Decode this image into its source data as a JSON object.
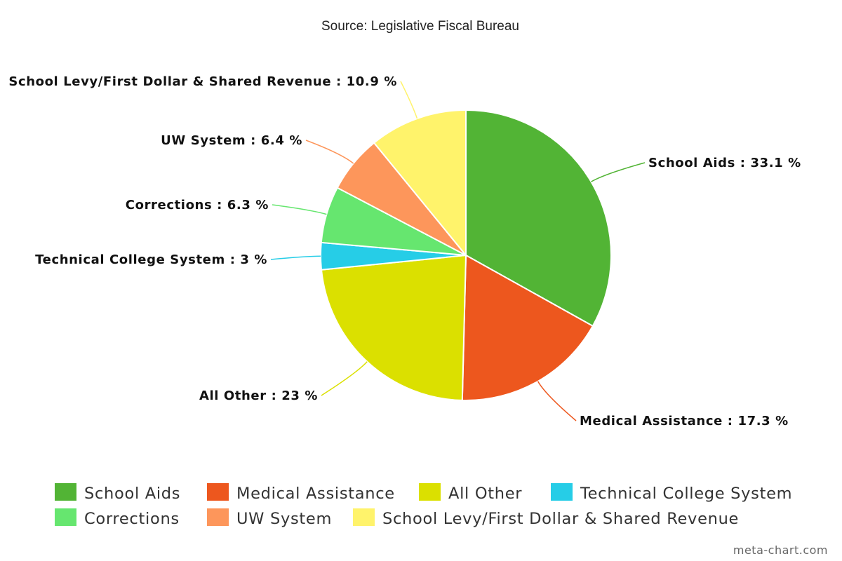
{
  "chart_data": {
    "type": "pie",
    "title": "",
    "subtitle": "Source: Legislative Fiscal Bureau",
    "legend_position": "bottom",
    "slices": [
      {
        "name": "School Aids",
        "value": 33.1,
        "label": "School Aids : 33.1 %",
        "color": "#52b435"
      },
      {
        "name": "Medical Assistance",
        "value": 17.3,
        "label": "Medical Assistance : 17.3 %",
        "color": "#ed571e"
      },
      {
        "name": "All Other",
        "value": 23,
        "label": "All Other : 23 %",
        "color": "#dbe000"
      },
      {
        "name": "Technical College System",
        "value": 3,
        "label": "Technical College System : 3 %",
        "color": "#26cde7"
      },
      {
        "name": "Corrections",
        "value": 6.3,
        "label": "Corrections : 6.3 %",
        "color": "#66e66f"
      },
      {
        "name": "UW System",
        "value": 6.4,
        "label": "UW System : 6.4 %",
        "color": "#fd965b"
      },
      {
        "name": "School Levy/First Dollar & Shared Revenue",
        "value": 10.9,
        "label": "School Levy/First Dollar & Shared Revenue : 10.9 %",
        "color": "#fff36b"
      }
    ]
  },
  "credit": "meta-chart.com"
}
